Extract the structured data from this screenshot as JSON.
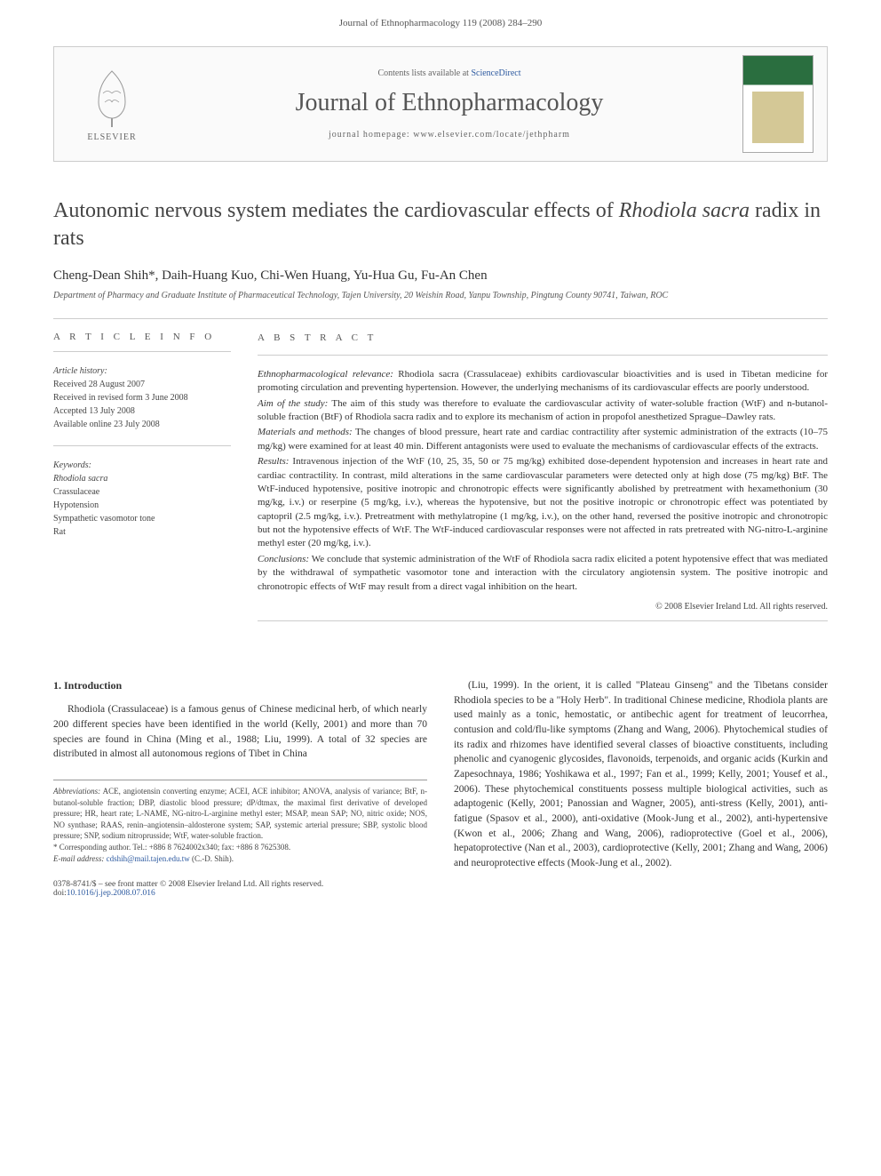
{
  "header": {
    "running_head": "Journal of Ethnopharmacology 119 (2008) 284–290",
    "contents_text": "Contents lists available at ",
    "contents_link": "ScienceDirect",
    "journal_name": "Journal of Ethnopharmacology",
    "homepage_label": "journal homepage: ",
    "homepage_url": "www.elsevier.com/locate/jethpharm",
    "publisher": "ELSEVIER"
  },
  "article": {
    "title_pre": "Autonomic nervous system mediates the cardiovascular effects of ",
    "title_em": "Rhodiola sacra",
    "title_post": " radix in rats",
    "authors": "Cheng-Dean Shih*, Daih-Huang Kuo, Chi-Wen Huang, Yu-Hua Gu, Fu-An Chen",
    "affiliation": "Department of Pharmacy and Graduate Institute of Pharmaceutical Technology, Tajen University, 20 Weishin Road, Yanpu Township, Pingtung County 90741, Taiwan, ROC"
  },
  "info": {
    "heading": "A R T I C L E   I N F O",
    "history_label": "Article history:",
    "history": [
      "Received 28 August 2007",
      "Received in revised form 3 June 2008",
      "Accepted 13 July 2008",
      "Available online 23 July 2008"
    ],
    "keywords_label": "Keywords:",
    "keywords": [
      "Rhodiola sacra",
      "Crassulaceae",
      "Hypotension",
      "Sympathetic vasomotor tone",
      "Rat"
    ]
  },
  "abstract": {
    "heading": "A B S T R A C T",
    "sections": [
      {
        "lead": "Ethnopharmacological relevance:",
        "text": " Rhodiola sacra (Crassulaceae) exhibits cardiovascular bioactivities and is used in Tibetan medicine for promoting circulation and preventing hypertension. However, the underlying mechanisms of its cardiovascular effects are poorly understood."
      },
      {
        "lead": "Aim of the study:",
        "text": " The aim of this study was therefore to evaluate the cardiovascular activity of water-soluble fraction (WtF) and n-butanol-soluble fraction (BtF) of Rhodiola sacra radix and to explore its mechanism of action in propofol anesthetized Sprague–Dawley rats."
      },
      {
        "lead": "Materials and methods:",
        "text": " The changes of blood pressure, heart rate and cardiac contractility after systemic administration of the extracts (10–75 mg/kg) were examined for at least 40 min. Different antagonists were used to evaluate the mechanisms of cardiovascular effects of the extracts."
      },
      {
        "lead": "Results:",
        "text": " Intravenous injection of the WtF (10, 25, 35, 50 or 75 mg/kg) exhibited dose-dependent hypotension and increases in heart rate and cardiac contractility. In contrast, mild alterations in the same cardiovascular parameters were detected only at high dose (75 mg/kg) BtF. The WtF-induced hypotensive, positive inotropic and chronotropic effects were significantly abolished by pretreatment with hexamethonium (30 mg/kg, i.v.) or reserpine (5 mg/kg, i.v.), whereas the hypotensive, but not the positive inotropic or chronotropic effect was potentiated by captopril (2.5 mg/kg, i.v.). Pretreatment with methylatropine (1 mg/kg, i.v.), on the other hand, reversed the positive inotropic and chronotropic but not the hypotensive effects of WtF. The WtF-induced cardiovascular responses were not affected in rats pretreated with NG-nitro-L-arginine methyl ester (20 mg/kg, i.v.)."
      },
      {
        "lead": "Conclusions:",
        "text": " We conclude that systemic administration of the WtF of Rhodiola sacra radix elicited a potent hypotensive effect that was mediated by the withdrawal of sympathetic vasomotor tone and interaction with the circulatory angiotensin system. The positive inotropic and chronotropic effects of WtF may result from a direct vagal inhibition on the heart."
      }
    ],
    "copyright": "© 2008 Elsevier Ireland Ltd. All rights reserved."
  },
  "intro": {
    "heading": "1.  Introduction",
    "left_para": "Rhodiola (Crassulaceae) is a famous genus of Chinese medicinal herb, of which nearly 200 different species have been identified in the world (Kelly, 2001) and more than 70 species are found in China (Ming et al., 1988; Liu, 1999). A total of 32 species are distributed in almost all autonomous regions of Tibet in China",
    "right_para": "(Liu, 1999). In the orient, it is called \"Plateau Ginseng\" and the Tibetans consider Rhodiola species to be a \"Holy Herb\". In traditional Chinese medicine, Rhodiola plants are used mainly as a tonic, hemostatic, or antibechic agent for treatment of leucorrhea, contusion and cold/flu-like symptoms (Zhang and Wang, 2006). Phytochemical studies of its radix and rhizomes have identified several classes of bioactive constituents, including phenolic and cyanogenic glycosides, flavonoids, terpenoids, and organic acids (Kurkin and Zapesochnaya, 1986; Yoshikawa et al., 1997; Fan et al., 1999; Kelly, 2001; Yousef et al., 2006). These phytochemical constituents possess multiple biological activities, such as adaptogenic (Kelly, 2001; Panossian and Wagner, 2005), anti-stress (Kelly, 2001), anti-fatigue (Spasov et al., 2000), anti-oxidative (Mook-Jung et al., 2002), anti-hypertensive (Kwon et al., 2006; Zhang and Wang, 2006), radioprotective (Goel et al., 2006), hepatoprotective (Nan et al., 2003), cardioprotective (Kelly, 2001; Zhang and Wang, 2006) and neuroprotective effects (Mook-Jung et al., 2002)."
  },
  "footnotes": {
    "abbrev_label": "Abbreviations:",
    "abbrev": "  ACE, angiotensin converting enzyme; ACEI, ACE inhibitor; ANOVA, analysis of variance; BtF, n-butanol-soluble fraction; DBP, diastolic blood pressure; dP/dtmax, the maximal first derivative of developed pressure; HR, heart rate; L-NAME, NG-nitro-L-arginine methyl ester; MSAP, mean SAP; NO, nitric oxide; NOS, NO synthase; RAAS, renin–angiotensin–aldosterone system; SAP, systemic arterial pressure; SBP, systolic blood pressure; SNP, sodium nitroprusside; WtF, water-soluble fraction.",
    "corr": "* Corresponding author. Tel.: +886 8 7624002x340; fax: +886 8 7625308.",
    "email_label": "E-mail address: ",
    "email": "cdshih@mail.tajen.edu.tw",
    "email_who": " (C.-D. Shih)."
  },
  "footer": {
    "issn": "0378-8741/$ – see front matter © 2008 Elsevier Ireland Ltd. All rights reserved.",
    "doi_label": "doi:",
    "doi": "10.1016/j.jep.2008.07.016"
  },
  "colors": {
    "link": "#2d5aa0",
    "text": "#333333",
    "muted": "#555555",
    "rule": "#cccccc"
  }
}
